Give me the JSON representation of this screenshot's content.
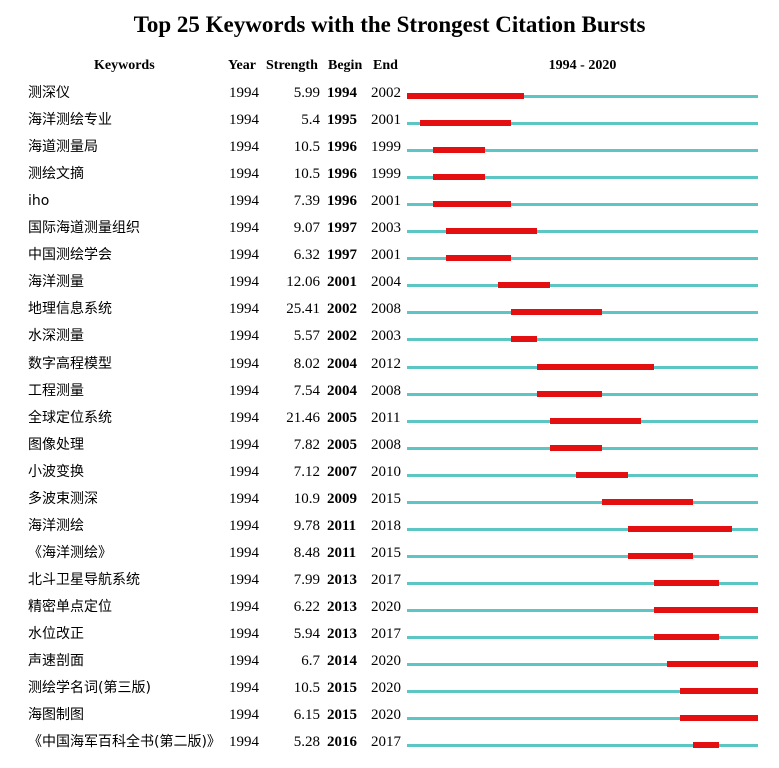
{
  "chart_data": {
    "type": "table",
    "title": "Top 25 Keywords with the Strongest Citation Bursts",
    "headers": {
      "keywords": "Keywords",
      "year": "Year",
      "strength": "Strength",
      "begin": "Begin",
      "end": "End",
      "range": "1994 - 2020"
    },
    "range_start": 1994,
    "range_end": 2020,
    "colors": {
      "burst": "#e30f10",
      "track": "#5bc6c3"
    },
    "rows": [
      {
        "keyword": "测深仪",
        "year": "1994",
        "strength": "5.99",
        "begin": "1994",
        "end": "2002"
      },
      {
        "keyword": "海洋测绘专业",
        "year": "1994",
        "strength": "5.4",
        "begin": "1995",
        "end": "2001"
      },
      {
        "keyword": "海道测量局",
        "year": "1994",
        "strength": "10.5",
        "begin": "1996",
        "end": "1999"
      },
      {
        "keyword": "测绘文摘",
        "year": "1994",
        "strength": "10.5",
        "begin": "1996",
        "end": "1999"
      },
      {
        "keyword": "iho",
        "year": "1994",
        "strength": "7.39",
        "begin": "1996",
        "end": "2001"
      },
      {
        "keyword": "国际海道测量组织",
        "year": "1994",
        "strength": "9.07",
        "begin": "1997",
        "end": "2003"
      },
      {
        "keyword": "中国测绘学会",
        "year": "1994",
        "strength": "6.32",
        "begin": "1997",
        "end": "2001"
      },
      {
        "keyword": "海洋测量",
        "year": "1994",
        "strength": "12.06",
        "begin": "2001",
        "end": "2004"
      },
      {
        "keyword": "地理信息系统",
        "year": "1994",
        "strength": "25.41",
        "begin": "2002",
        "end": "2008"
      },
      {
        "keyword": "水深测量",
        "year": "1994",
        "strength": "5.57",
        "begin": "2002",
        "end": "2003"
      },
      {
        "keyword": "数字高程模型",
        "year": "1994",
        "strength": "8.02",
        "begin": "2004",
        "end": "2012"
      },
      {
        "keyword": "工程测量",
        "year": "1994",
        "strength": "7.54",
        "begin": "2004",
        "end": "2008"
      },
      {
        "keyword": "全球定位系统",
        "year": "1994",
        "strength": "21.46",
        "begin": "2005",
        "end": "2011"
      },
      {
        "keyword": "图像处理",
        "year": "1994",
        "strength": "7.82",
        "begin": "2005",
        "end": "2008"
      },
      {
        "keyword": "小波变换",
        "year": "1994",
        "strength": "7.12",
        "begin": "2007",
        "end": "2010"
      },
      {
        "keyword": "多波束测深",
        "year": "1994",
        "strength": "10.9",
        "begin": "2009",
        "end": "2015"
      },
      {
        "keyword": "海洋测绘",
        "year": "1994",
        "strength": "9.78",
        "begin": "2011",
        "end": "2018"
      },
      {
        "keyword": "《海洋测绘》",
        "year": "1994",
        "strength": "8.48",
        "begin": "2011",
        "end": "2015"
      },
      {
        "keyword": "北斗卫星导航系统",
        "year": "1994",
        "strength": "7.99",
        "begin": "2013",
        "end": "2017"
      },
      {
        "keyword": "精密单点定位",
        "year": "1994",
        "strength": "6.22",
        "begin": "2013",
        "end": "2020"
      },
      {
        "keyword": "水位改正",
        "year": "1994",
        "strength": "5.94",
        "begin": "2013",
        "end": "2017"
      },
      {
        "keyword": "声速剖面",
        "year": "1994",
        "strength": "6.7",
        "begin": "2014",
        "end": "2020"
      },
      {
        "keyword": "测绘学名词(第三版)",
        "year": "1994",
        "strength": "10.5",
        "begin": "2015",
        "end": "2020"
      },
      {
        "keyword": "海图制图",
        "year": "1994",
        "strength": "6.15",
        "begin": "2015",
        "end": "2020"
      },
      {
        "keyword": "《中国海军百科全书(第二版)》",
        "year": "1994",
        "strength": "5.28",
        "begin": "2016",
        "end": "2017"
      }
    ]
  }
}
